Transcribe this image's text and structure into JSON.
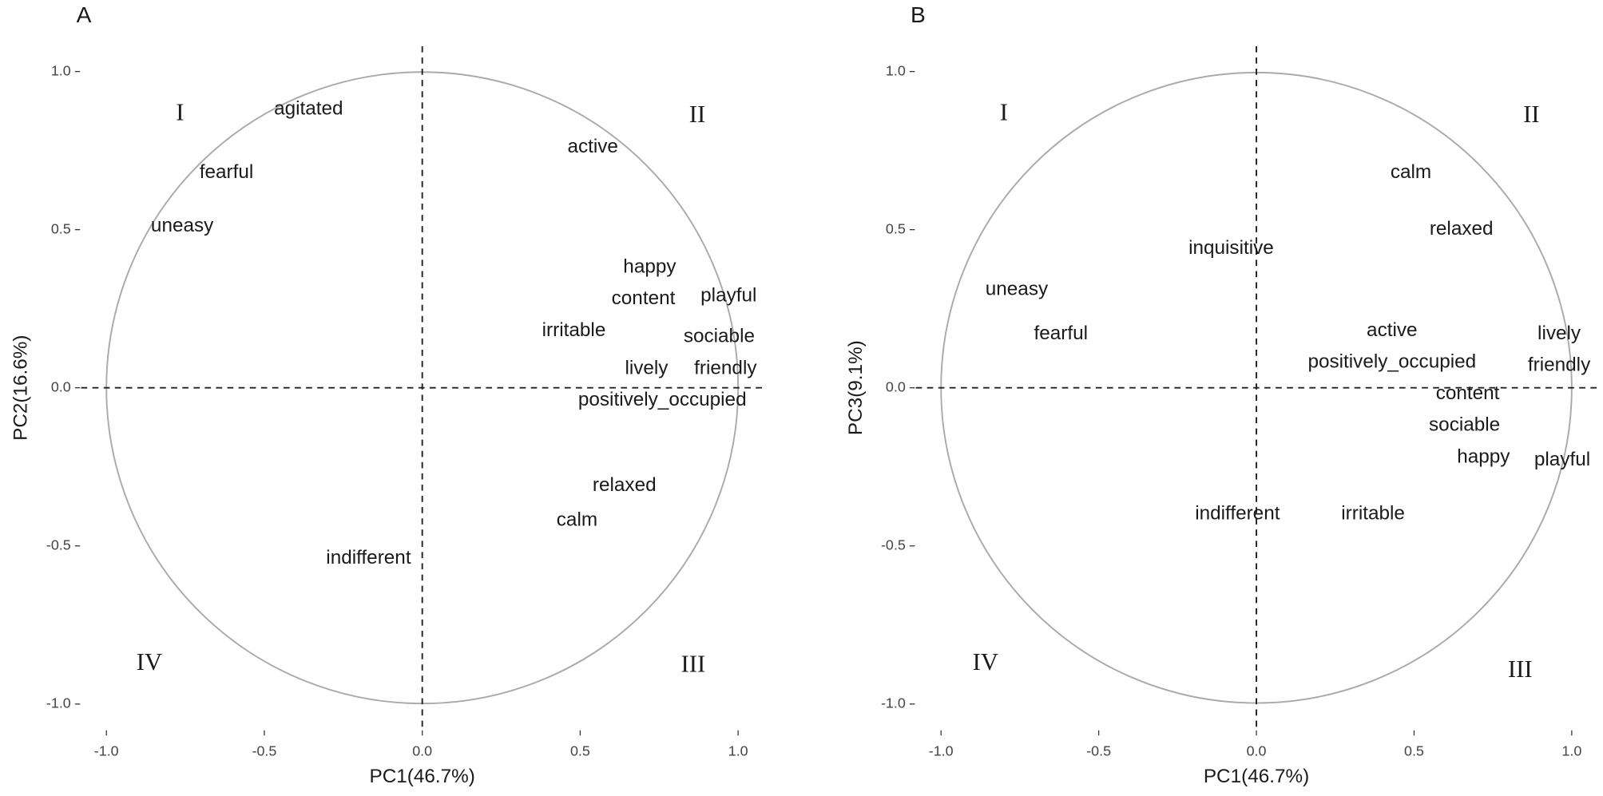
{
  "chart_data": [
    {
      "type": "scatter",
      "panel": "A",
      "xlabel": "PC1(46.7%)",
      "ylabel": "PC2(16.6%)",
      "xlim": [
        -1.08,
        1.08
      ],
      "ylim": [
        -1.08,
        1.08
      ],
      "xticks": [
        {
          "value": -1,
          "label": "-1.0"
        },
        -0.5,
        {
          "value": 0,
          "label": "0.0"
        },
        0.5,
        {
          "value": 1,
          "label": "1.0"
        }
      ],
      "yticks": [
        {
          "value": -1,
          "label": "-1.0"
        },
        -0.5,
        {
          "value": 0,
          "label": "0.0"
        },
        0.5,
        {
          "value": 1,
          "label": "1.0"
        }
      ],
      "unit_circle": true,
      "quadrant_labels": [
        "I",
        "II",
        "III",
        "IV"
      ],
      "labels": [
        "agitated",
        "fearful",
        "uneasy",
        "active",
        "happy",
        "content",
        "playful",
        "irritable",
        "sociable",
        "lively",
        "friendly",
        "positively_occupied",
        "relaxed",
        "calm",
        "indifferent"
      ],
      "x": [
        -0.36,
        -0.62,
        -0.76,
        0.54,
        0.72,
        0.7,
        0.97,
        0.48,
        0.94,
        0.71,
        0.96,
        0.76,
        0.64,
        0.49,
        -0.17
      ],
      "y": [
        0.88,
        0.68,
        0.51,
        0.76,
        0.38,
        0.28,
        0.29,
        0.18,
        0.16,
        0.06,
        0.06,
        -0.04,
        -0.31,
        -0.42,
        -0.54
      ]
    },
    {
      "type": "scatter",
      "panel": "B",
      "xlabel": "PC1(46.7%)",
      "ylabel": "PC3(9.1%)",
      "xlim": [
        -1.08,
        1.08
      ],
      "ylim": [
        -1.08,
        1.08
      ],
      "xticks": [
        {
          "value": -1,
          "label": "-1.0"
        },
        -0.5,
        {
          "value": 0,
          "label": "0.0"
        },
        0.5,
        {
          "value": 1,
          "label": "1.0"
        }
      ],
      "yticks": [
        {
          "value": -1,
          "label": "-1.0"
        },
        -0.5,
        {
          "value": 0,
          "label": "0.0"
        },
        0.5,
        {
          "value": 1,
          "label": "1.0"
        }
      ],
      "unit_circle": true,
      "quadrant_labels": [
        "I",
        "II",
        "III",
        "IV"
      ],
      "labels": [
        "calm",
        "relaxed",
        "inquisitive",
        "uneasy",
        "fearful",
        "active",
        "lively",
        "positively_occupied",
        "friendly",
        "content",
        "sociable",
        "happy",
        "playful",
        "indifferent",
        "irritable"
      ],
      "x": [
        0.49,
        0.65,
        -0.08,
        -0.76,
        -0.62,
        0.43,
        0.96,
        0.43,
        0.96,
        0.67,
        0.66,
        0.72,
        0.97,
        -0.06,
        0.37
      ],
      "y": [
        0.68,
        0.5,
        0.44,
        0.31,
        0.17,
        0.18,
        0.17,
        0.08,
        0.07,
        -0.02,
        -0.12,
        -0.22,
        -0.23,
        -0.4,
        -0.4
      ]
    }
  ]
}
